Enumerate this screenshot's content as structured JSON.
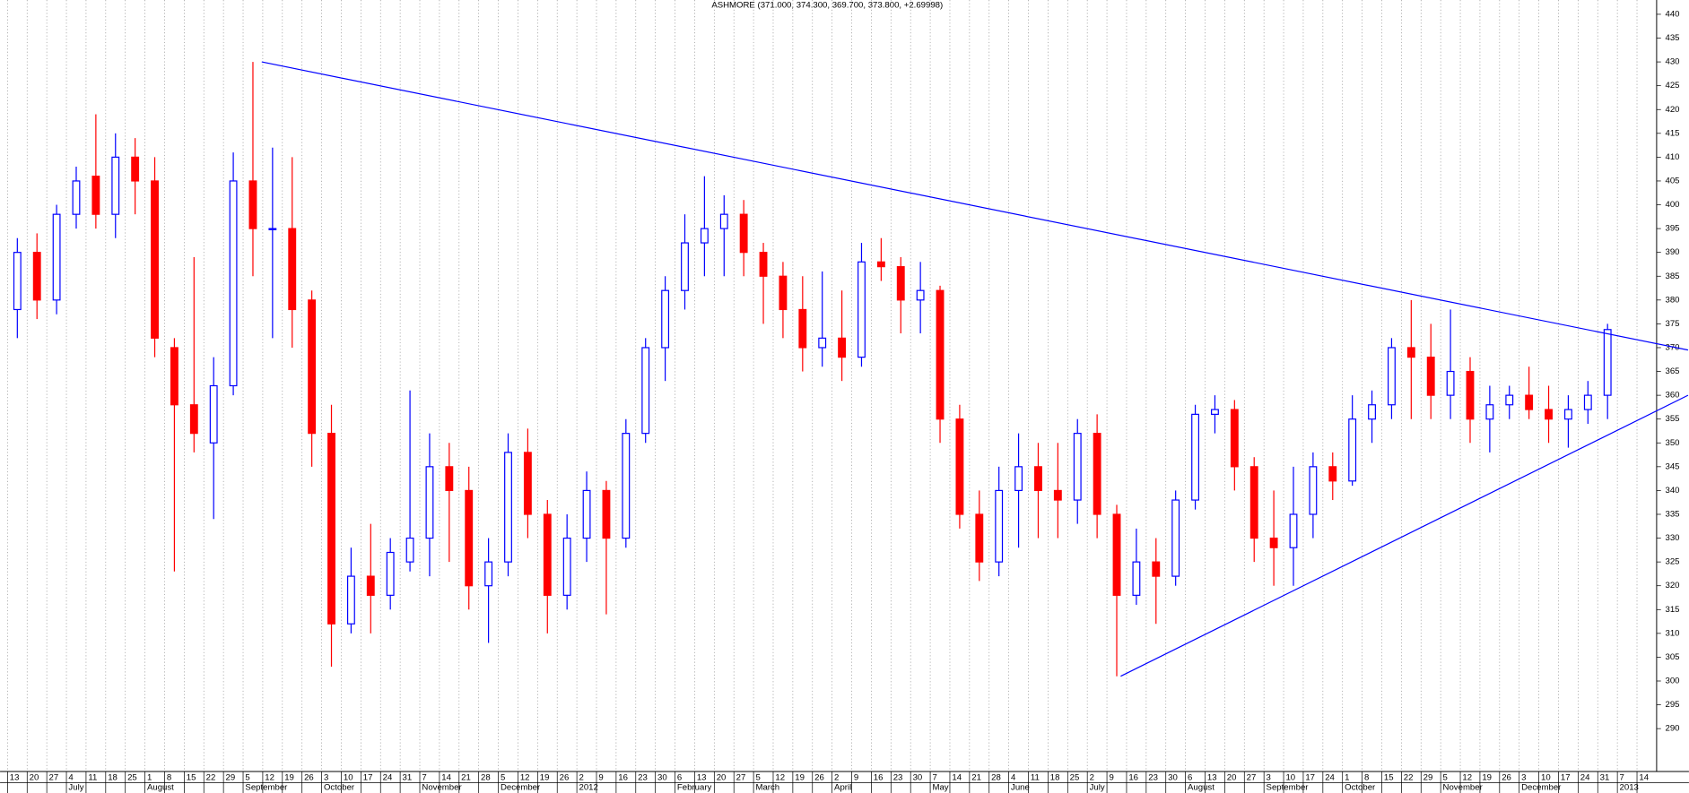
{
  "chart_data": {
    "type": "candlestick",
    "title": "ASHMORE (371.000, 374.300, 369.700, 373.800, +2.69998)",
    "categories": [
      "13",
      "20",
      "27",
      "4",
      "11",
      "18",
      "25",
      "1",
      "8",
      "15",
      "22",
      "29",
      "5",
      "12",
      "19",
      "26",
      "3",
      "10",
      "17",
      "24",
      "31",
      "7",
      "14",
      "21",
      "28",
      "5",
      "12",
      "19",
      "26",
      "2",
      "9",
      "16",
      "23",
      "30",
      "6",
      "13",
      "20",
      "27",
      "5",
      "12",
      "19",
      "26",
      "2",
      "9",
      "16",
      "23",
      "30",
      "7",
      "14",
      "21",
      "28",
      "4",
      "11",
      "18",
      "25",
      "2",
      "9",
      "16",
      "23",
      "30",
      "6",
      "13",
      "20",
      "27",
      "3",
      "10",
      "17",
      "24",
      "1",
      "8",
      "15",
      "22",
      "29",
      "5",
      "12",
      "19",
      "26",
      "3",
      "10",
      "17",
      "24",
      "31",
      "7",
      "14"
    ],
    "month_labels": [
      null,
      null,
      null,
      "July",
      null,
      null,
      null,
      "August",
      null,
      null,
      null,
      null,
      "September",
      null,
      null,
      null,
      "October",
      null,
      null,
      null,
      null,
      "November",
      null,
      null,
      null,
      "December",
      null,
      null,
      null,
      "2012",
      null,
      null,
      null,
      null,
      "February",
      null,
      null,
      null,
      "March",
      null,
      null,
      null,
      "April",
      null,
      null,
      null,
      null,
      "May",
      null,
      null,
      null,
      "June",
      null,
      null,
      null,
      "July",
      null,
      null,
      null,
      null,
      "August",
      null,
      null,
      null,
      "September",
      null,
      null,
      null,
      "October",
      null,
      null,
      null,
      null,
      "November",
      null,
      null,
      null,
      "December",
      null,
      null,
      null,
      null,
      "2013",
      null,
      null
    ],
    "open": [
      378,
      390,
      380,
      398,
      406,
      398,
      410,
      405,
      370,
      358,
      350,
      362,
      405,
      395,
      395,
      380,
      352,
      312,
      322,
      318,
      325,
      330,
      345,
      340,
      320,
      325,
      348,
      335,
      318,
      330,
      340,
      330,
      352,
      370,
      382,
      392,
      395,
      398,
      390,
      385,
      378,
      370,
      372,
      368,
      388,
      387,
      380,
      382,
      355,
      335,
      325,
      340,
      345,
      340,
      338,
      352,
      335,
      318,
      325,
      322,
      338,
      356,
      357,
      345,
      330,
      328,
      335,
      345,
      342,
      355,
      358,
      370,
      368,
      360,
      365,
      355,
      358,
      360,
      357,
      355,
      357,
      360,
      null,
      null
    ],
    "high": [
      393,
      394,
      400,
      408,
      419,
      415,
      414,
      410,
      372,
      389,
      368,
      411,
      430,
      412,
      410,
      382,
      358,
      328,
      333,
      330,
      361,
      352,
      350,
      345,
      330,
      352,
      353,
      338,
      335,
      344,
      342,
      355,
      372,
      385,
      398,
      406,
      402,
      401,
      392,
      388,
      385,
      386,
      382,
      392,
      393,
      389,
      388,
      383,
      358,
      340,
      345,
      352,
      350,
      350,
      355,
      356,
      337,
      332,
      330,
      340,
      358,
      360,
      359,
      347,
      340,
      345,
      348,
      348,
      360,
      361,
      372,
      380,
      375,
      378,
      368,
      362,
      362,
      366,
      362,
      360,
      363,
      375,
      null,
      null
    ],
    "low": [
      372,
      376,
      377,
      395,
      395,
      393,
      398,
      368,
      323,
      348,
      334,
      360,
      385,
      372,
      370,
      345,
      303,
      310,
      310,
      315,
      323,
      322,
      325,
      315,
      308,
      322,
      330,
      310,
      315,
      325,
      314,
      328,
      350,
      363,
      378,
      385,
      385,
      385,
      375,
      372,
      365,
      366,
      363,
      366,
      384,
      373,
      373,
      350,
      332,
      321,
      322,
      328,
      330,
      330,
      333,
      330,
      301,
      316,
      312,
      320,
      336,
      352,
      340,
      325,
      320,
      320,
      330,
      338,
      341,
      350,
      355,
      355,
      355,
      355,
      350,
      348,
      355,
      355,
      350,
      349,
      354,
      355,
      null,
      null
    ],
    "close": [
      390,
      380,
      398,
      405,
      398,
      410,
      405,
      372,
      358,
      352,
      362,
      405,
      395,
      395,
      378,
      352,
      312,
      322,
      318,
      327,
      330,
      345,
      340,
      320,
      325,
      348,
      335,
      318,
      330,
      340,
      330,
      352,
      370,
      382,
      392,
      395,
      398,
      390,
      385,
      378,
      370,
      372,
      368,
      388,
      387,
      380,
      382,
      355,
      335,
      325,
      340,
      345,
      340,
      338,
      352,
      335,
      318,
      325,
      322,
      338,
      356,
      357,
      345,
      330,
      328,
      335,
      345,
      342,
      355,
      358,
      370,
      368,
      360,
      365,
      355,
      358,
      360,
      357,
      355,
      357,
      360,
      373.8,
      null,
      null
    ],
    "up_color": "#0000ff",
    "down_color": "#ff0000",
    "trendlines": [
      {
        "x": [
          12.95,
          85.6
        ],
        "y": [
          430,
          369.5
        ],
        "color": "#0000ff"
      },
      {
        "x": [
          56.7,
          85.6
        ],
        "y": [
          301,
          360
        ],
        "color": "#0000ff"
      }
    ],
    "xlim": [
      -0.38,
      84
    ],
    "ylim": [
      281,
      443
    ],
    "yticks": [
      290,
      295,
      300,
      305,
      310,
      315,
      320,
      325,
      330,
      335,
      340,
      345,
      350,
      355,
      360,
      365,
      370,
      375,
      380,
      385,
      390,
      395,
      400,
      405,
      410,
      415,
      420,
      425,
      430,
      435,
      440
    ],
    "grid": true
  }
}
